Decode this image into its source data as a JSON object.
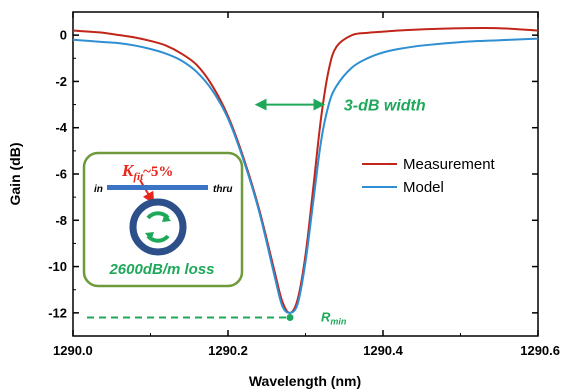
{
  "chart_data": {
    "type": "line",
    "xlabel": "Wavelength (nm)",
    "ylabel": "Gain (dB)",
    "xlim": [
      1290.0,
      1290.6
    ],
    "ylim": [
      -13.0,
      1.0
    ],
    "x_ticks": [
      "1290.0",
      "1290.2",
      "1290.4",
      "1290.6"
    ],
    "y_ticks": [
      "0",
      "-2",
      "-4",
      "-6",
      "-8",
      "-10",
      "-12"
    ],
    "legend_position": "right",
    "series": [
      {
        "name": "Measurement",
        "color": "#c0261a",
        "x": [
          1290.0,
          1290.02,
          1290.04,
          1290.06,
          1290.08,
          1290.1,
          1290.12,
          1290.14,
          1290.16,
          1290.18,
          1290.2,
          1290.22,
          1290.24,
          1290.26,
          1290.27,
          1290.28,
          1290.29,
          1290.3,
          1290.31,
          1290.32,
          1290.33,
          1290.34,
          1290.36,
          1290.38,
          1290.4,
          1290.42,
          1290.45,
          1290.5,
          1290.55,
          1290.6
        ],
        "y": [
          0.2,
          0.15,
          0.1,
          0.0,
          -0.1,
          -0.25,
          -0.45,
          -0.8,
          -1.3,
          -2.2,
          -3.5,
          -5.3,
          -7.5,
          -10.2,
          -11.5,
          -12.0,
          -11.4,
          -9.5,
          -6.6,
          -3.6,
          -1.5,
          -0.5,
          0.0,
          0.1,
          0.15,
          0.2,
          0.25,
          0.3,
          0.3,
          0.2
        ]
      },
      {
        "name": "Model",
        "color": "#2e8fd2",
        "x": [
          1290.0,
          1290.02,
          1290.04,
          1290.06,
          1290.08,
          1290.1,
          1290.12,
          1290.14,
          1290.16,
          1290.18,
          1290.2,
          1290.22,
          1290.24,
          1290.26,
          1290.27,
          1290.28,
          1290.29,
          1290.3,
          1290.31,
          1290.32,
          1290.33,
          1290.34,
          1290.36,
          1290.38,
          1290.4,
          1290.42,
          1290.45,
          1290.5,
          1290.55,
          1290.6
        ],
        "y": [
          -0.2,
          -0.25,
          -0.3,
          -0.35,
          -0.45,
          -0.6,
          -0.8,
          -1.1,
          -1.6,
          -2.4,
          -3.6,
          -5.4,
          -7.6,
          -10.4,
          -11.7,
          -12.0,
          -11.6,
          -9.8,
          -7.2,
          -4.6,
          -3.0,
          -2.2,
          -1.4,
          -1.0,
          -0.75,
          -0.6,
          -0.45,
          -0.3,
          -0.22,
          -0.15
        ]
      }
    ],
    "annotations": {
      "width_label": "3-dB width",
      "width_x": [
        1290.235,
        1290.325
      ],
      "width_y": -3.0,
      "rmin_label": "R",
      "rmin_sub": "min",
      "rmin_x": 1290.28,
      "rmin_y": -12.2,
      "rmin_line_from": 1290.0
    },
    "inset": {
      "kappa_symbol": "K",
      "kappa_sub": "fit",
      "kappa_value": "~5%",
      "in_label": "in",
      "thru_label": "thru",
      "loss_label": "2600dB/m loss"
    }
  }
}
